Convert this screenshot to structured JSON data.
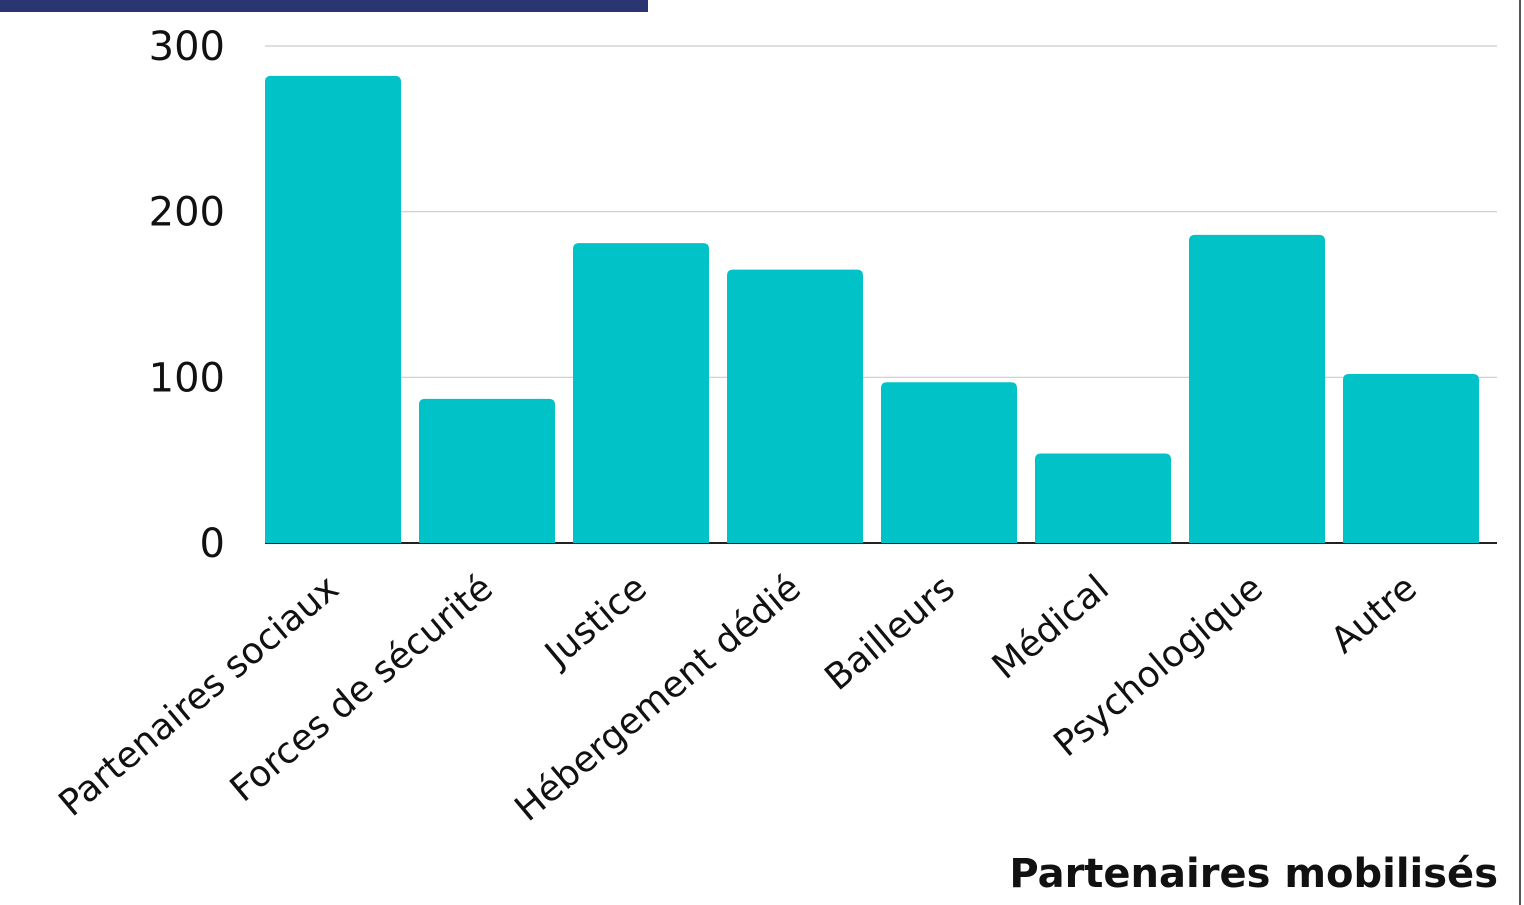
{
  "chart_data": {
    "type": "bar",
    "title": "",
    "xlabel": "Partenaires mobilisés",
    "ylabel": "",
    "categories": [
      "Partenaires sociaux",
      "Forces de sécurité",
      "Justice",
      "Hébergement dédié",
      "Bailleurs",
      "Médical",
      "Psychologique",
      "Autre"
    ],
    "series": [
      {
        "values": [
          282,
          87,
          181,
          165,
          97,
          54,
          186,
          102
        ]
      }
    ],
    "ylim": [
      0,
      300
    ],
    "yticks": [
      0,
      100,
      200,
      300
    ],
    "grid": true,
    "legend": "none",
    "bar_color": "#00c2c7",
    "grid_color": "#cccccc",
    "axis_color": "#222222"
  }
}
